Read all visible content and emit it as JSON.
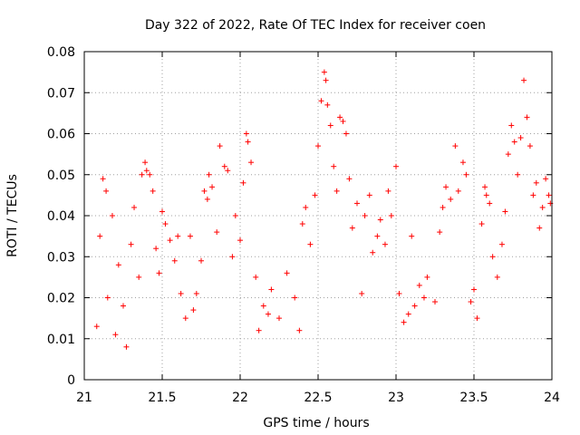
{
  "chart_data": {
    "type": "scatter",
    "title": "Day 322 of 2022, Rate Of TEC Index for receiver coen",
    "xlabel": "GPS time / hours",
    "ylabel": "ROTI / TECUs",
    "xlim": [
      21,
      24
    ],
    "ylim": [
      0,
      0.08
    ],
    "xticks": [
      21,
      21.5,
      22,
      22.5,
      23,
      23.5,
      24
    ],
    "xtick_labels": [
      "21",
      "21.5",
      "22",
      "22.5",
      "23",
      "23.5",
      "24"
    ],
    "yticks": [
      0,
      0.01,
      0.02,
      0.03,
      0.04,
      0.05,
      0.06,
      0.07,
      0.08
    ],
    "ytick_labels": [
      "0",
      "0.01",
      "0.02",
      "0.03",
      "0.04",
      "0.05",
      "0.06",
      "0.07",
      "0.08"
    ],
    "grid": true,
    "marker": "+",
    "color": "#ff0000",
    "series": [
      {
        "name": "ROTI",
        "points": [
          [
            21.08,
            0.013
          ],
          [
            21.1,
            0.035
          ],
          [
            21.12,
            0.049
          ],
          [
            21.14,
            0.046
          ],
          [
            21.15,
            0.02
          ],
          [
            21.18,
            0.04
          ],
          [
            21.2,
            0.011
          ],
          [
            21.22,
            0.028
          ],
          [
            21.25,
            0.018
          ],
          [
            21.27,
            0.008
          ],
          [
            21.3,
            0.033
          ],
          [
            21.32,
            0.042
          ],
          [
            21.35,
            0.025
          ],
          [
            21.37,
            0.05
          ],
          [
            21.39,
            0.053
          ],
          [
            21.4,
            0.051
          ],
          [
            21.42,
            0.05
          ],
          [
            21.44,
            0.046
          ],
          [
            21.46,
            0.032
          ],
          [
            21.48,
            0.026
          ],
          [
            21.5,
            0.041
          ],
          [
            21.52,
            0.038
          ],
          [
            21.55,
            0.034
          ],
          [
            21.58,
            0.029
          ],
          [
            21.6,
            0.035
          ],
          [
            21.62,
            0.021
          ],
          [
            21.65,
            0.015
          ],
          [
            21.68,
            0.035
          ],
          [
            21.7,
            0.017
          ],
          [
            21.72,
            0.021
          ],
          [
            21.75,
            0.029
          ],
          [
            21.77,
            0.046
          ],
          [
            21.79,
            0.044
          ],
          [
            21.8,
            0.05
          ],
          [
            21.82,
            0.047
          ],
          [
            21.85,
            0.036
          ],
          [
            21.87,
            0.057
          ],
          [
            21.9,
            0.052
          ],
          [
            21.92,
            0.051
          ],
          [
            21.95,
            0.03
          ],
          [
            21.97,
            0.04
          ],
          [
            22.0,
            0.034
          ],
          [
            22.02,
            0.048
          ],
          [
            22.04,
            0.06
          ],
          [
            22.05,
            0.058
          ],
          [
            22.07,
            0.053
          ],
          [
            22.1,
            0.025
          ],
          [
            22.12,
            0.012
          ],
          [
            22.15,
            0.018
          ],
          [
            22.18,
            0.016
          ],
          [
            22.2,
            0.022
          ],
          [
            22.25,
            0.015
          ],
          [
            22.3,
            0.026
          ],
          [
            22.35,
            0.02
          ],
          [
            22.38,
            0.012
          ],
          [
            22.4,
            0.038
          ],
          [
            22.42,
            0.042
          ],
          [
            22.45,
            0.033
          ],
          [
            22.48,
            0.045
          ],
          [
            22.5,
            0.057
          ],
          [
            22.52,
            0.068
          ],
          [
            22.54,
            0.075
          ],
          [
            22.55,
            0.073
          ],
          [
            22.56,
            0.067
          ],
          [
            22.58,
            0.062
          ],
          [
            22.6,
            0.052
          ],
          [
            22.62,
            0.046
          ],
          [
            22.64,
            0.064
          ],
          [
            22.66,
            0.063
          ],
          [
            22.68,
            0.06
          ],
          [
            22.7,
            0.049
          ],
          [
            22.72,
            0.037
          ],
          [
            22.75,
            0.043
          ],
          [
            22.78,
            0.021
          ],
          [
            22.8,
            0.04
          ],
          [
            22.83,
            0.045
          ],
          [
            22.85,
            0.031
          ],
          [
            22.88,
            0.035
          ],
          [
            22.9,
            0.039
          ],
          [
            22.93,
            0.033
          ],
          [
            22.95,
            0.046
          ],
          [
            22.97,
            0.04
          ],
          [
            23.0,
            0.052
          ],
          [
            23.02,
            0.021
          ],
          [
            23.05,
            0.014
          ],
          [
            23.08,
            0.016
          ],
          [
            23.1,
            0.035
          ],
          [
            23.12,
            0.018
          ],
          [
            23.15,
            0.023
          ],
          [
            23.18,
            0.02
          ],
          [
            23.2,
            0.025
          ],
          [
            23.25,
            0.019
          ],
          [
            23.28,
            0.036
          ],
          [
            23.3,
            0.042
          ],
          [
            23.32,
            0.047
          ],
          [
            23.35,
            0.044
          ],
          [
            23.38,
            0.057
          ],
          [
            23.4,
            0.046
          ],
          [
            23.43,
            0.053
          ],
          [
            23.45,
            0.05
          ],
          [
            23.48,
            0.019
          ],
          [
            23.5,
            0.022
          ],
          [
            23.52,
            0.015
          ],
          [
            23.55,
            0.038
          ],
          [
            23.57,
            0.047
          ],
          [
            23.58,
            0.045
          ],
          [
            23.6,
            0.043
          ],
          [
            23.62,
            0.03
          ],
          [
            23.65,
            0.025
          ],
          [
            23.68,
            0.033
          ],
          [
            23.7,
            0.041
          ],
          [
            23.72,
            0.055
          ],
          [
            23.74,
            0.062
          ],
          [
            23.76,
            0.058
          ],
          [
            23.78,
            0.05
          ],
          [
            23.8,
            0.059
          ],
          [
            23.82,
            0.073
          ],
          [
            23.84,
            0.064
          ],
          [
            23.86,
            0.057
          ],
          [
            23.88,
            0.045
          ],
          [
            23.9,
            0.048
          ],
          [
            23.92,
            0.037
          ],
          [
            23.94,
            0.042
          ],
          [
            23.96,
            0.049
          ],
          [
            23.98,
            0.045
          ],
          [
            23.99,
            0.043
          ]
        ]
      }
    ]
  }
}
